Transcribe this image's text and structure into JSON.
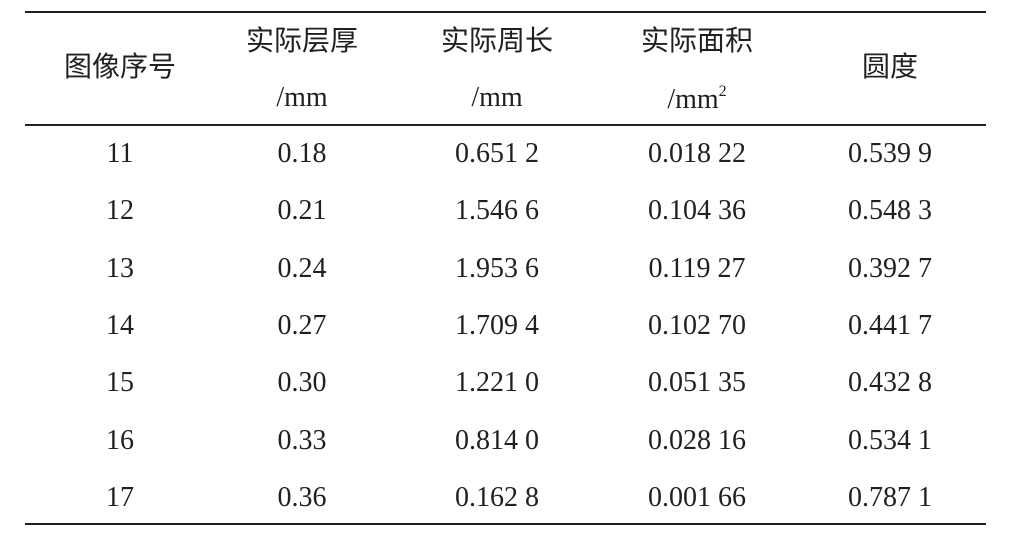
{
  "table": {
    "header": [
      {
        "title": "图像序号"
      },
      {
        "title": "实际层厚",
        "unit": "/mm"
      },
      {
        "title": "实际周长",
        "unit": "/mm"
      },
      {
        "title": "实际面积",
        "unit": "/mm",
        "unit_sup": "2"
      },
      {
        "title": "圆度"
      }
    ],
    "rows": [
      [
        "11",
        "0.18",
        "0.651 2",
        "0.018 22",
        "0.539 9"
      ],
      [
        "12",
        "0.21",
        "1.546 6",
        "0.104 36",
        "0.548 3"
      ],
      [
        "13",
        "0.24",
        "1.953 6",
        "0.119 27",
        "0.392 7"
      ],
      [
        "14",
        "0.27",
        "1.709 4",
        "0.102 70",
        "0.441 7"
      ],
      [
        "15",
        "0.30",
        "1.221 0",
        "0.051 35",
        "0.432 8"
      ],
      [
        "16",
        "0.33",
        "0.814 0",
        "0.028 16",
        "0.534 1"
      ],
      [
        "17",
        "0.36",
        "0.162 8",
        "0.001 66",
        "0.787 1"
      ]
    ]
  }
}
